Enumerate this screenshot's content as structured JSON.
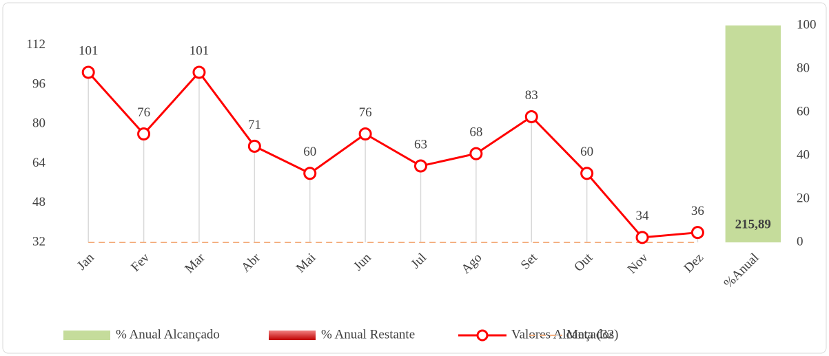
{
  "chart_data": {
    "type": "combo",
    "categories": [
      "Jan",
      "Fev",
      "Mar",
      "Abr",
      "Mai",
      "Jun",
      "Jul",
      "Ago",
      "Set",
      "Out",
      "Nov",
      "Dez",
      "%Anual"
    ],
    "series": [
      {
        "name": "% Anual Alcançado",
        "type": "bar",
        "axis": "y2",
        "color": "#c5dc9b",
        "values": [
          null,
          null,
          null,
          null,
          null,
          null,
          null,
          null,
          null,
          null,
          null,
          null,
          215.89
        ],
        "value_labels": [
          null,
          null,
          null,
          null,
          null,
          null,
          null,
          null,
          null,
          null,
          null,
          null,
          "215,89"
        ]
      },
      {
        "name": "% Anual Restante",
        "type": "bar",
        "axis": "y2",
        "color": "#e03030",
        "values": [
          null,
          null,
          null,
          null,
          null,
          null,
          null,
          null,
          null,
          null,
          null,
          null,
          0
        ]
      },
      {
        "name": "Valores Alcançados",
        "type": "line",
        "color": "#ff0000",
        "markers": true,
        "values": [
          101,
          76,
          101,
          71,
          60,
          76,
          63,
          68,
          83,
          60,
          34,
          36,
          null
        ]
      },
      {
        "name": "Meta (32)",
        "type": "line",
        "color": "#f4b183",
        "dashed": true,
        "values": [
          32,
          32,
          32,
          32,
          32,
          32,
          32,
          32,
          32,
          32,
          32,
          32,
          null
        ]
      }
    ],
    "ylim": [
      32,
      120
    ],
    "yticks": [
      32,
      48,
      64,
      80,
      96,
      112
    ],
    "y2lim": [
      0,
      100
    ],
    "y2ticks": [
      0,
      20,
      40,
      60,
      80,
      100
    ],
    "legend": "bottom"
  }
}
